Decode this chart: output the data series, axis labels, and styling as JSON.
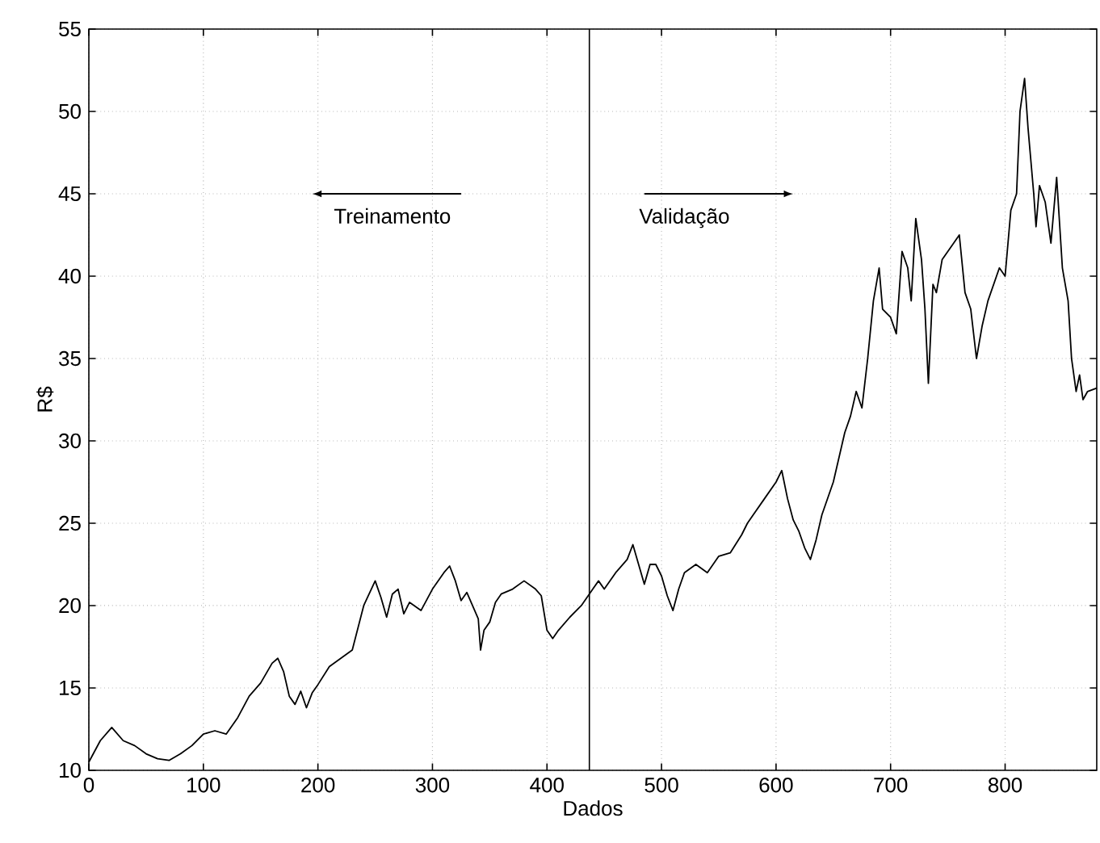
{
  "chart_data": {
    "type": "line",
    "xlabel": "Dados",
    "ylabel": "R$",
    "annotations": [
      "Treinamento",
      "Validação"
    ],
    "xlim": [
      0,
      880
    ],
    "xticks": [
      0,
      100,
      200,
      300,
      400,
      500,
      600,
      700,
      800
    ],
    "ylim": [
      10,
      55
    ],
    "yticks": [
      10,
      15,
      20,
      25,
      30,
      35,
      40,
      45,
      50,
      55
    ],
    "grid": true,
    "marker": "none",
    "line_style": "solid",
    "ref_lines": [
      {
        "axis": "x",
        "value": 437,
        "color": "#000000"
      }
    ],
    "series": [
      {
        "color": "#000000",
        "x": [
          0,
          10,
          20,
          30,
          40,
          50,
          60,
          70,
          80,
          90,
          100,
          110,
          120,
          130,
          140,
          150,
          160,
          165,
          170,
          175,
          180,
          185,
          190,
          195,
          200,
          210,
          220,
          230,
          240,
          250,
          255,
          260,
          265,
          270,
          275,
          280,
          290,
          300,
          310,
          315,
          320,
          325,
          330,
          340,
          342,
          345,
          350,
          355,
          360,
          370,
          380,
          390,
          395,
          400,
          405,
          410,
          420,
          430,
          440,
          445,
          450,
          460,
          470,
          475,
          480,
          485,
          490,
          495,
          500,
          505,
          510,
          515,
          520,
          530,
          540,
          550,
          560,
          570,
          575,
          580,
          590,
          600,
          605,
          610,
          615,
          620,
          625,
          630,
          635,
          640,
          650,
          660,
          665,
          670,
          675,
          680,
          685,
          690,
          693,
          700,
          705,
          710,
          715,
          718,
          722,
          727,
          730,
          733,
          737,
          740,
          745,
          750,
          755,
          760,
          765,
          770,
          775,
          780,
          785,
          790,
          795,
          800,
          805,
          810,
          813,
          817,
          820,
          825,
          827,
          830,
          835,
          840,
          845,
          850,
          855,
          858,
          862,
          865,
          868,
          872,
          880
        ],
        "values": [
          10.5,
          11.8,
          12.6,
          11.8,
          11.5,
          11.0,
          10.7,
          10.6,
          11.0,
          11.5,
          12.2,
          12.4,
          12.2,
          13.2,
          14.5,
          15.3,
          16.5,
          16.8,
          16.0,
          14.5,
          14.0,
          14.8,
          13.8,
          14.7,
          15.2,
          16.3,
          16.8,
          17.3,
          20.0,
          21.5,
          20.5,
          19.3,
          20.7,
          21.0,
          19.5,
          20.2,
          19.7,
          21.0,
          22.0,
          22.4,
          21.5,
          20.3,
          20.8,
          19.2,
          17.3,
          18.5,
          19.0,
          20.2,
          20.7,
          21.0,
          21.5,
          21.0,
          20.6,
          18.5,
          18.0,
          18.5,
          19.3,
          20.0,
          21.0,
          21.5,
          21.0,
          22.0,
          22.8,
          23.7,
          22.5,
          21.3,
          22.5,
          22.5,
          21.8,
          20.6,
          19.7,
          21.0,
          22.0,
          22.5,
          22.0,
          23.0,
          23.2,
          24.3,
          25.0,
          25.5,
          26.5,
          27.5,
          28.2,
          26.5,
          25.2,
          24.5,
          23.5,
          22.8,
          24.0,
          25.5,
          27.5,
          30.5,
          31.5,
          33.0,
          32.0,
          35.0,
          38.5,
          40.5,
          38.0,
          37.5,
          36.5,
          41.5,
          40.5,
          38.5,
          43.5,
          41.0,
          38.0,
          33.5,
          39.5,
          39.0,
          41.0,
          41.5,
          42.0,
          42.5,
          39.0,
          38.0,
          35.0,
          37.0,
          38.5,
          39.5,
          40.5,
          40.0,
          44.0,
          45.0,
          50.0,
          52.0,
          49.0,
          45.0,
          43.0,
          45.5,
          44.5,
          42.0,
          46.0,
          40.5,
          38.5,
          35.0,
          33.0,
          34.0,
          32.5,
          33.0,
          33.2
        ]
      }
    ]
  }
}
